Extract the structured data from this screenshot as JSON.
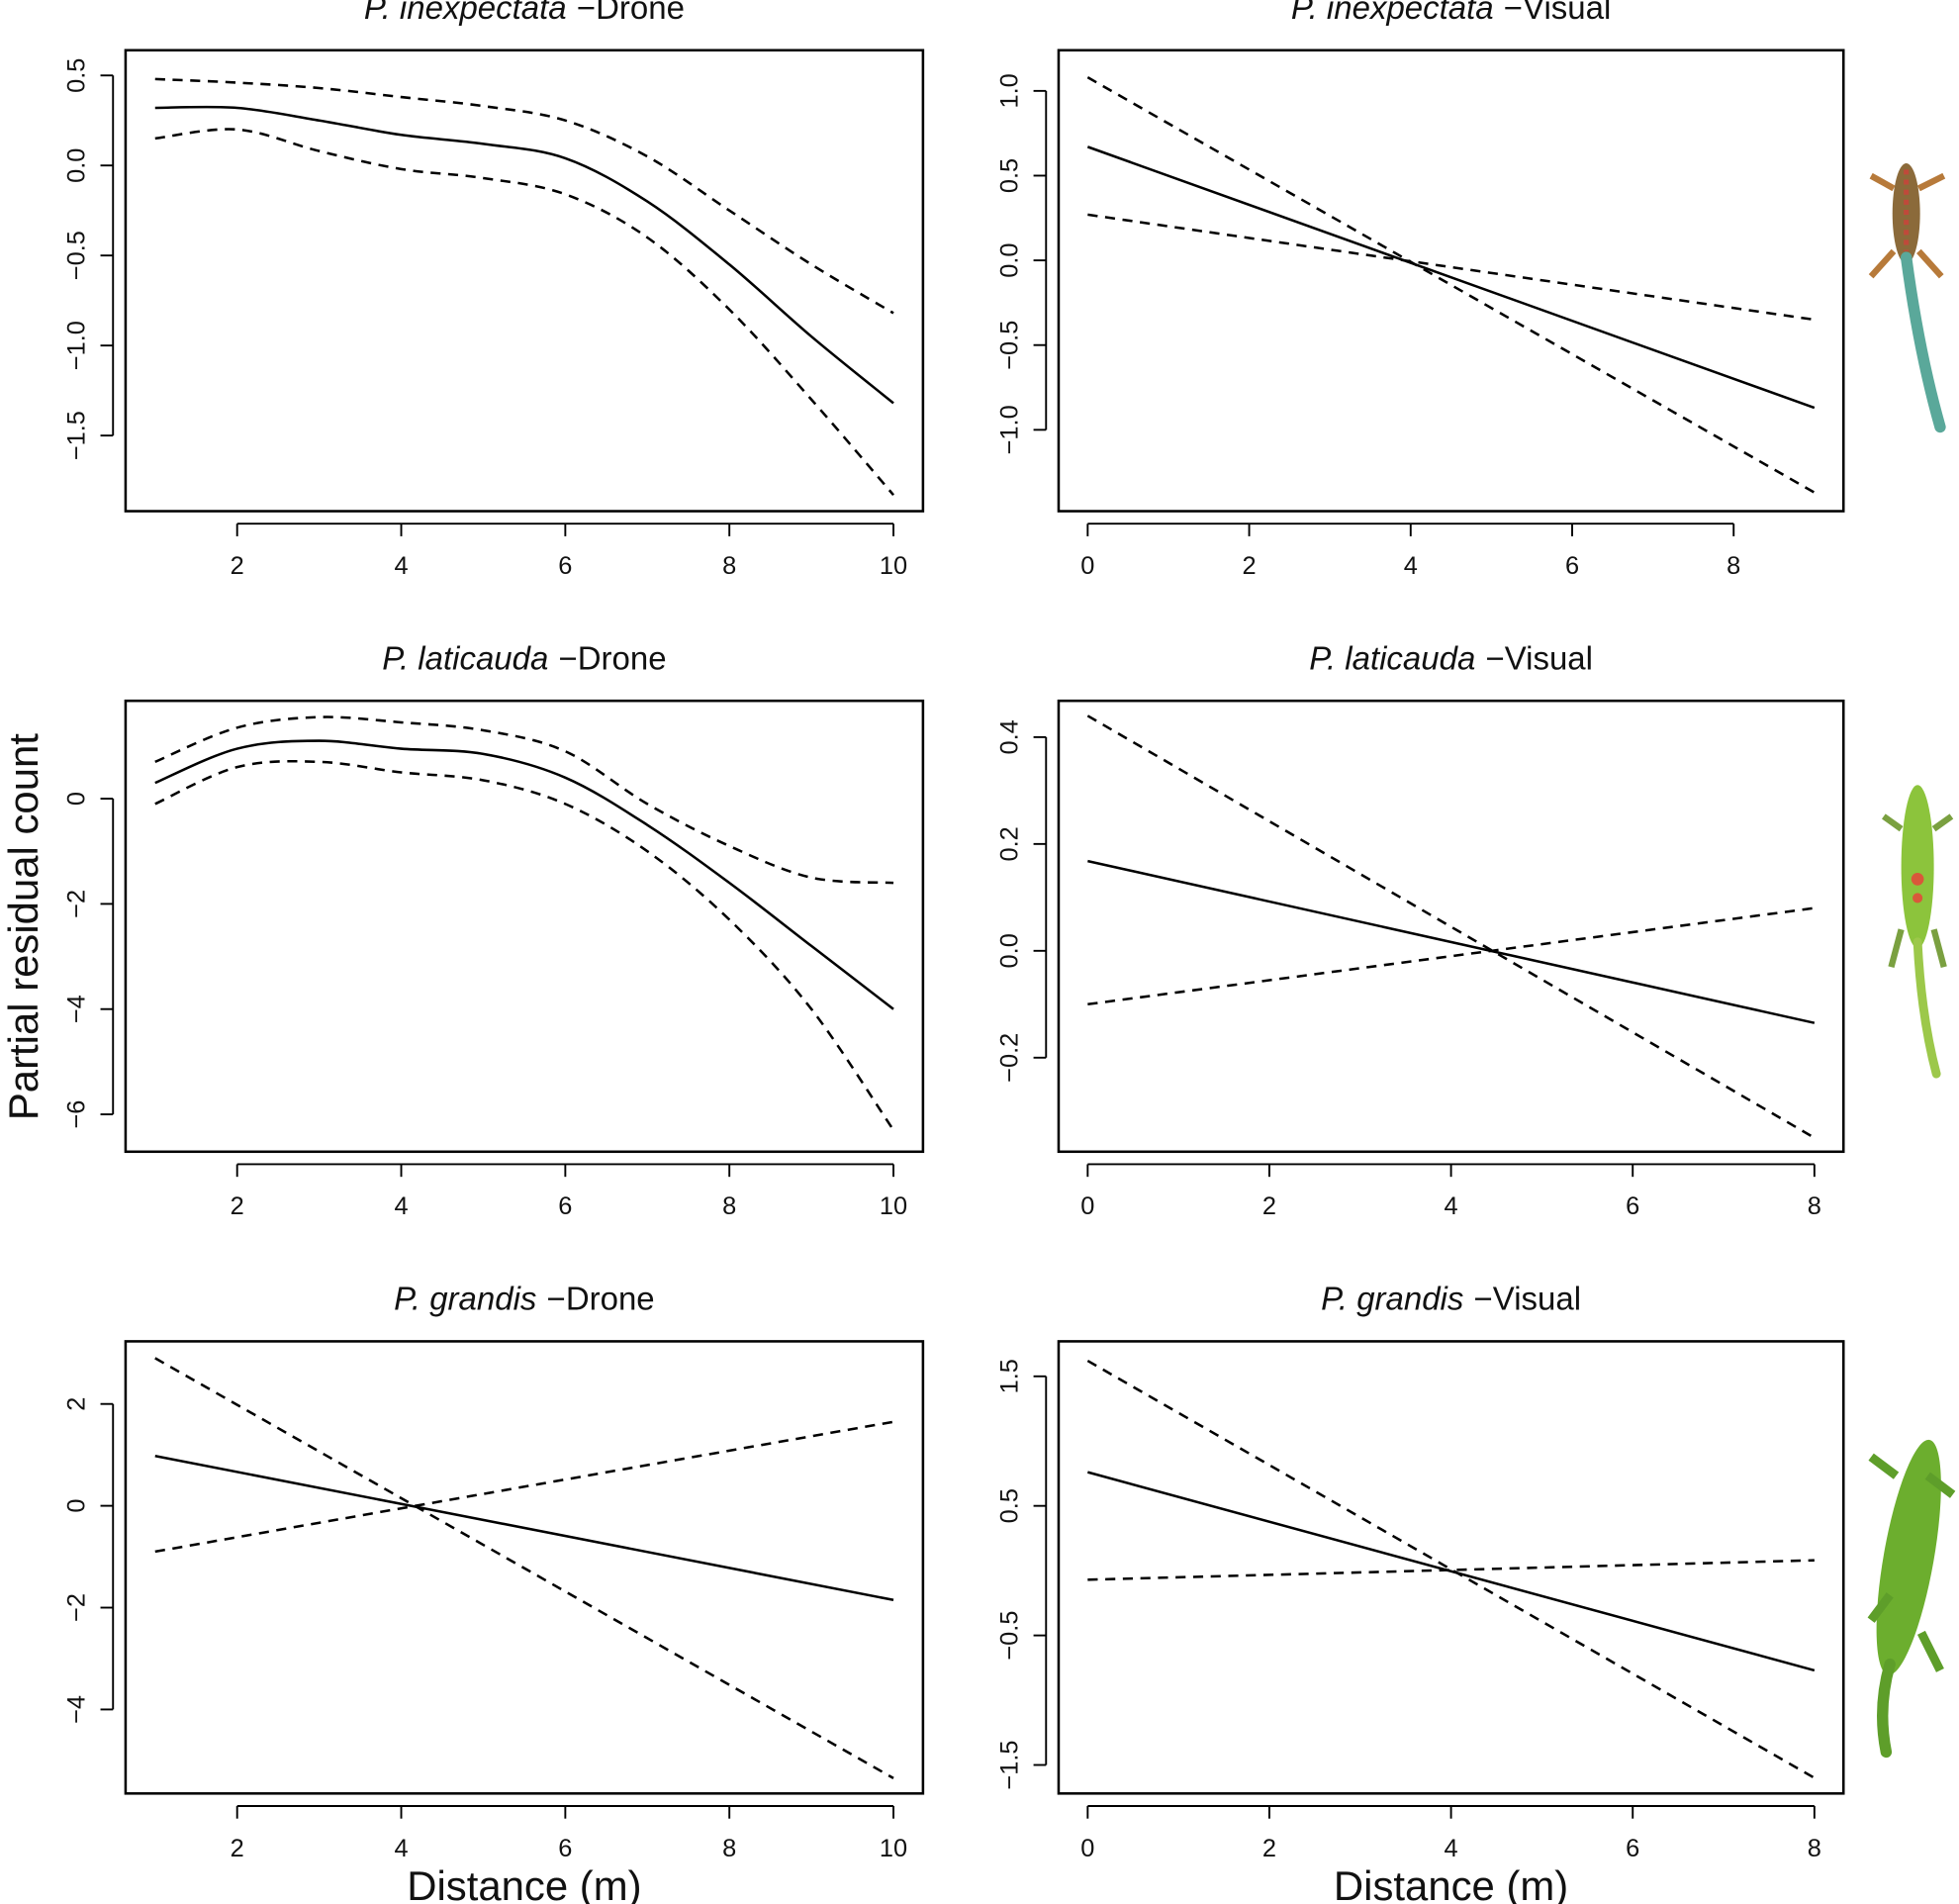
{
  "ylabel": "Partial residual count",
  "chart_data": [
    {
      "type": "line",
      "title": [
        "P. inexpectata",
        "−Drone"
      ],
      "x": [
        1,
        2,
        3,
        4,
        5,
        6,
        7,
        8,
        9,
        10
      ],
      "series": [
        {
          "color": "#000000",
          "style": "solid",
          "values": [
            0.32,
            0.32,
            0.25,
            0.17,
            0.12,
            0.04,
            -0.2,
            -0.55,
            -0.95,
            -1.32
          ]
        },
        {
          "color": "#000000",
          "style": "dashed",
          "values": [
            0.48,
            0.46,
            0.43,
            0.38,
            0.33,
            0.25,
            0.05,
            -0.25,
            -0.55,
            -0.82
          ]
        },
        {
          "color": "#000000",
          "style": "dashed",
          "values": [
            0.15,
            0.2,
            0.08,
            -0.02,
            -0.07,
            -0.16,
            -0.4,
            -0.8,
            -1.3,
            -1.83
          ]
        }
      ],
      "xlim": [
        0.64,
        10.36
      ],
      "xticks": [
        2,
        4,
        6,
        8,
        10
      ],
      "ylim": [
        -1.92,
        0.64
      ],
      "yticks": [
        {
          "value": 0.5,
          "label": "0.5"
        },
        {
          "value": 0,
          "label": "0.0"
        },
        {
          "value": -0.5,
          "label": "−0.5"
        },
        {
          "value": -1,
          "label": "−1.0"
        },
        {
          "value": -1.5,
          "label": "−1.5"
        }
      ]
    },
    {
      "type": "line",
      "title": [
        "P. inexpectata",
        "−Visual"
      ],
      "x": [
        0,
        9
      ],
      "series": [
        {
          "color": "#000000",
          "style": "solid",
          "values": [
            0.67,
            -0.87
          ]
        },
        {
          "color": "#000000",
          "style": "dashed",
          "values": [
            1.08,
            -1.37
          ]
        },
        {
          "color": "#000000",
          "style": "dashed",
          "values": [
            0.27,
            -0.35
          ]
        }
      ],
      "xlim": [
        -0.36,
        9.36
      ],
      "xticks": [
        0,
        2,
        4,
        6,
        8
      ],
      "ylim": [
        -1.48,
        1.24
      ],
      "yticks": [
        {
          "value": 1,
          "label": "1.0"
        },
        {
          "value": 0.5,
          "label": "0.5"
        },
        {
          "value": 0,
          "label": "0.0"
        },
        {
          "value": -0.5,
          "label": "−0.5"
        },
        {
          "value": -1,
          "label": "−1.0"
        }
      ]
    },
    {
      "type": "line",
      "title": [
        "P. laticauda",
        "−Drone"
      ],
      "x": [
        1,
        2,
        3,
        4,
        5,
        6,
        7,
        8,
        9,
        10
      ],
      "series": [
        {
          "color": "#000000",
          "style": "solid",
          "values": [
            0.3,
            0.95,
            1.1,
            0.95,
            0.85,
            0.4,
            -0.5,
            -1.6,
            -2.8,
            -4.0
          ]
        },
        {
          "color": "#000000",
          "style": "dashed",
          "values": [
            0.7,
            1.35,
            1.55,
            1.45,
            1.3,
            0.9,
            -0.1,
            -0.9,
            -1.5,
            -1.6
          ]
        },
        {
          "color": "#000000",
          "style": "dashed",
          "values": [
            -0.1,
            0.6,
            0.7,
            0.5,
            0.35,
            -0.1,
            -1.0,
            -2.3,
            -4.0,
            -6.3
          ]
        }
      ],
      "xlim": [
        0.64,
        10.36
      ],
      "xticks": [
        2,
        4,
        6,
        8,
        10
      ],
      "ylim": [
        -6.71,
        1.86
      ],
      "yticks": [
        0,
        {
          "value": -2,
          "label": "−2"
        },
        {
          "value": -4,
          "label": "−4"
        },
        {
          "value": -6,
          "label": "−6"
        }
      ]
    },
    {
      "type": "line",
      "title": [
        "P. laticauda",
        "−Visual"
      ],
      "x": [
        0,
        8
      ],
      "series": [
        {
          "color": "#000000",
          "style": "solid",
          "values": [
            0.168,
            -0.135
          ]
        },
        {
          "color": "#000000",
          "style": "dashed",
          "values": [
            0.44,
            -0.35
          ]
        },
        {
          "color": "#000000",
          "style": "dashed",
          "values": [
            -0.1,
            0.08
          ]
        }
      ],
      "xlim": [
        -0.32,
        8.32
      ],
      "xticks": [
        0,
        2,
        4,
        6,
        8
      ],
      "ylim": [
        -0.376,
        0.468
      ],
      "yticks": [
        0.4,
        0.2,
        {
          "value": 0,
          "label": "0.0"
        },
        {
          "value": -0.2,
          "label": "−0.2"
        }
      ]
    },
    {
      "type": "line",
      "title": [
        "P. grandis",
        "−Drone"
      ],
      "x": [
        1,
        10
      ],
      "series": [
        {
          "color": "#000000",
          "style": "solid",
          "values": [
            0.98,
            -1.85
          ]
        },
        {
          "color": "#000000",
          "style": "dashed",
          "values": [
            2.9,
            -5.35
          ]
        },
        {
          "color": "#000000",
          "style": "dashed",
          "values": [
            -0.9,
            1.65
          ]
        }
      ],
      "xlim": [
        0.64,
        10.36
      ],
      "xticks": [
        2,
        4,
        6,
        8,
        10
      ],
      "xlabel": "Distance (m)",
      "ylim": [
        -5.65,
        3.23
      ],
      "yticks": [
        2,
        0,
        {
          "value": -2,
          "label": "−2"
        },
        {
          "value": -4,
          "label": "−4"
        }
      ]
    },
    {
      "type": "line",
      "title": [
        "P. grandis",
        "−Visual"
      ],
      "x": [
        0,
        8
      ],
      "series": [
        {
          "color": "#000000",
          "style": "solid",
          "values": [
            0.76,
            -0.77
          ]
        },
        {
          "color": "#000000",
          "style": "dashed",
          "values": [
            1.62,
            -1.6
          ]
        },
        {
          "color": "#000000",
          "style": "dashed",
          "values": [
            -0.07,
            0.08
          ]
        }
      ],
      "xlim": [
        -0.32,
        8.32
      ],
      "xticks": [
        0,
        2,
        4,
        6,
        8
      ],
      "xlabel": "Distance (m)",
      "ylim": [
        -1.72,
        1.77
      ],
      "yticks": [
        1.5,
        0.5,
        {
          "value": -0.5,
          "label": "−0.5"
        },
        {
          "value": -1.5,
          "label": "−1.5"
        }
      ]
    }
  ]
}
